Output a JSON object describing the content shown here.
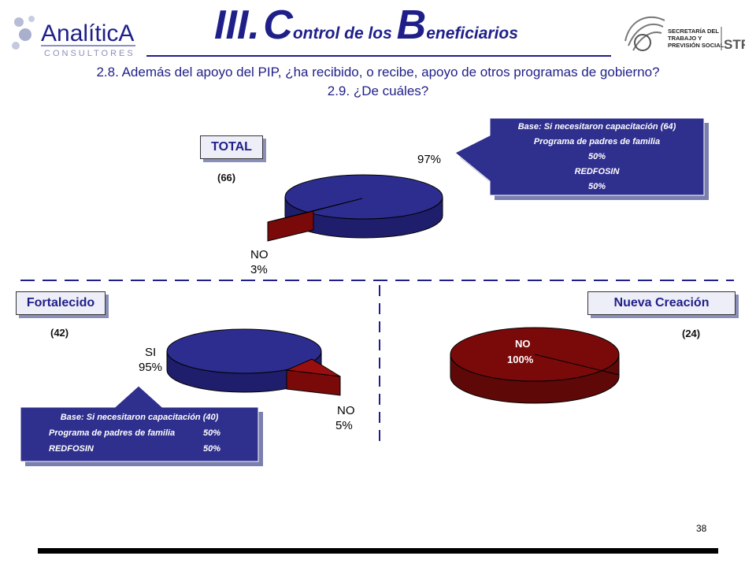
{
  "header": {
    "logo_left": {
      "name": "AnalíticA",
      "sub": "CONSULTORES"
    },
    "logo_right": {
      "line1": "SECRETARÍA DEL",
      "line2": "TRABAJO Y",
      "line3": "PREVISIÓN SOCIAL",
      "abbr": "STPS"
    },
    "title": {
      "roman": "III.",
      "w1_cap": "C",
      "w1_rest": "ontrol de los ",
      "w2_cap": "B",
      "w2_rest": "eneficiarios"
    }
  },
  "question": {
    "line1": "2.8. Además del apoyo del PIP, ¿ha recibido, o recibe, apoyo de otros programas de gobierno?",
    "line2": "2.9. ¿De cuáles?"
  },
  "colors": {
    "navy": "#1f1f8a",
    "pie_si": "#2d2d8f",
    "pie_no": "#7a0a0a",
    "callout": "#2f2f8e"
  },
  "segments": {
    "total": {
      "label": "TOTAL",
      "n": "(66)"
    },
    "fortalecido": {
      "label": "Fortalecido",
      "n": "(42)"
    },
    "nueva": {
      "label": "Nueva Creación",
      "n": "(24)"
    }
  },
  "chart_data": [
    {
      "type": "pie",
      "segment": "TOTAL",
      "slices": [
        {
          "label": "",
          "value": 97,
          "value_label": "97%"
        },
        {
          "label": "NO",
          "value": 3,
          "value_label": "3%"
        }
      ]
    },
    {
      "type": "pie",
      "segment": "Fortalecido",
      "slices": [
        {
          "label": "SI",
          "value": 95,
          "value_label": "95%"
        },
        {
          "label": "NO",
          "value": 5,
          "value_label": "5%"
        }
      ]
    },
    {
      "type": "pie",
      "segment": "Nueva Creación",
      "slices": [
        {
          "label": "NO",
          "value": 100,
          "value_label": "100%"
        }
      ]
    }
  ],
  "callouts": {
    "total": {
      "base": "Base: Si necesitaron capacitación (64)",
      "p1": "Programa de padres de familia",
      "v1": "50%",
      "p2": "REDFOSIN",
      "v2": "50%"
    },
    "fortalecido": {
      "base": "Base: Si necesitaron capacitación (40)",
      "p1": "Programa de padres de familia",
      "v1": "50%",
      "p2": "REDFOSIN",
      "v2": "50%"
    }
  },
  "footer": {
    "page": "38"
  }
}
